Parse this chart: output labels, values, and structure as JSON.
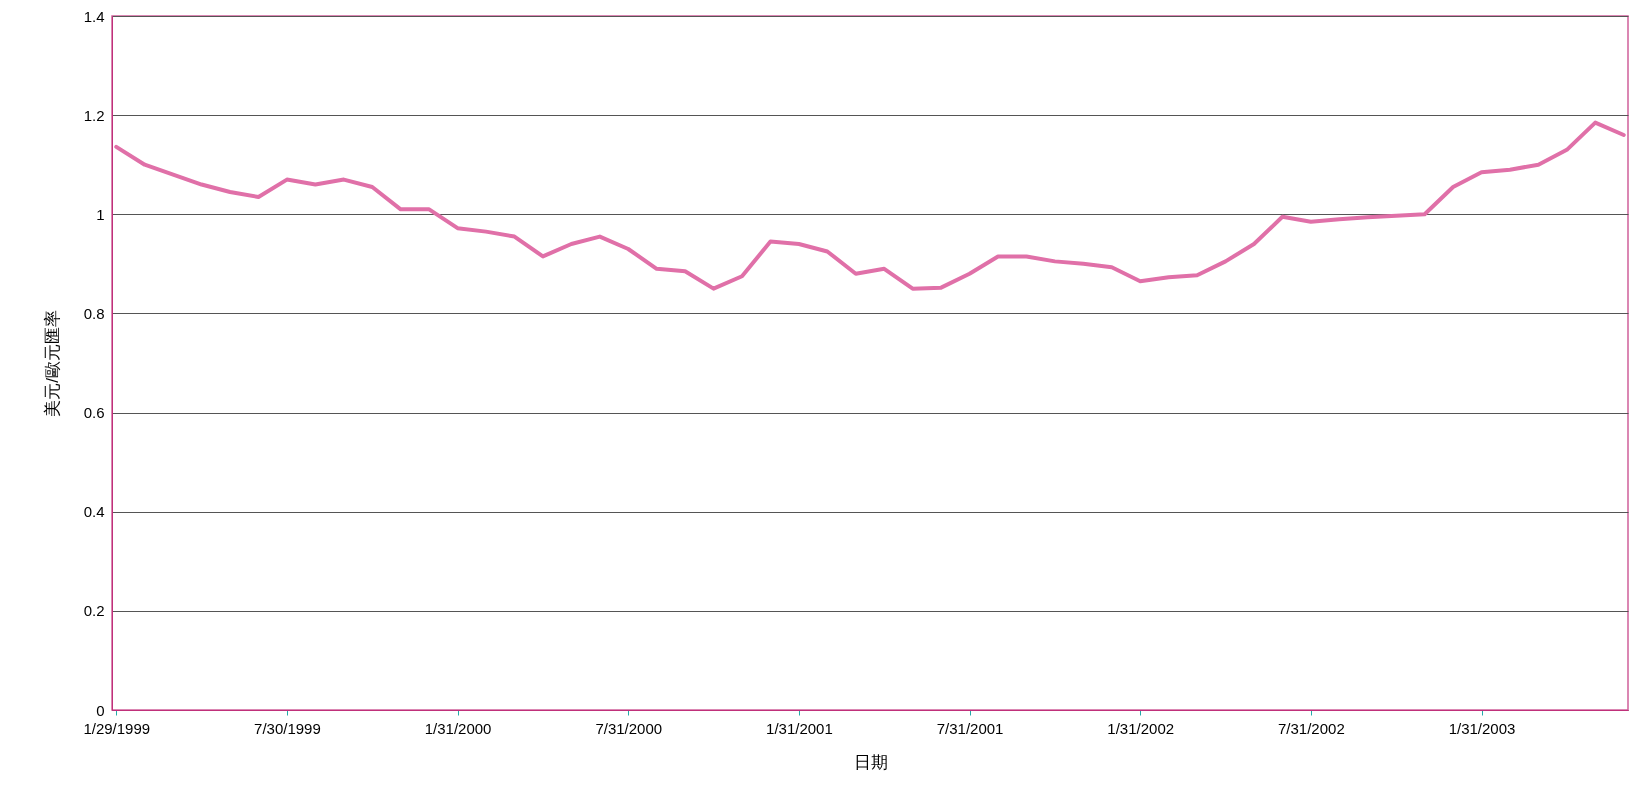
{
  "chart_data": {
    "type": "line",
    "xlabel": "日期",
    "ylabel": "美元/歐元匯率",
    "categories": [
      "1/29/1999",
      null,
      null,
      null,
      null,
      null,
      "7/30/1999",
      null,
      null,
      null,
      null,
      null,
      "1/31/2000",
      null,
      null,
      null,
      null,
      null,
      "7/31/2000",
      null,
      null,
      null,
      null,
      null,
      "1/31/2001",
      null,
      null,
      null,
      null,
      null,
      "7/31/2001",
      null,
      null,
      null,
      null,
      null,
      "1/31/2002",
      null,
      null,
      null,
      null,
      null,
      "7/31/2002",
      null,
      null,
      null,
      null,
      null,
      "1/31/2003",
      null,
      null,
      null,
      null,
      null
    ],
    "series": [
      {
        "color": "#e070a8",
        "values": [
          1.136,
          1.1,
          1.08,
          1.06,
          1.045,
          1.035,
          1.07,
          1.06,
          1.07,
          1.055,
          1.01,
          1.01,
          0.972,
          0.965,
          0.955,
          0.915,
          0.94,
          0.955,
          0.93,
          0.89,
          0.885,
          0.85,
          0.875,
          0.945,
          0.94,
          0.925,
          0.88,
          0.89,
          0.85,
          0.852,
          0.88,
          0.915,
          0.915,
          0.905,
          0.9,
          0.893,
          0.865,
          0.873,
          0.877,
          0.905,
          0.94,
          0.995,
          0.985,
          0.99,
          0.994,
          0.997,
          1.0,
          1.055,
          1.085,
          1.09,
          1.1,
          1.13,
          1.185,
          1.16
        ]
      }
    ],
    "ylim": [
      0,
      1.4
    ],
    "yticks": [
      0,
      0.2,
      0.4,
      0.6,
      0.8,
      1,
      1.2,
      1.4
    ],
    "grid": "y",
    "legend": false
  }
}
